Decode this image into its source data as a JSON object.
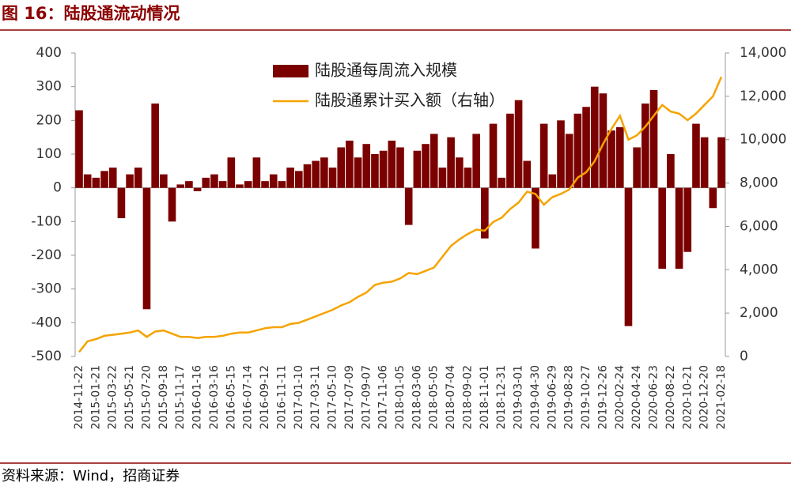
{
  "header": {
    "title": "图 16：陆股通流动情况"
  },
  "chart_data": {
    "type": "bar-line",
    "categories": [
      "2014-11-22",
      null,
      "2015-01-21",
      null,
      "2015-03-22",
      null,
      "2015-05-21",
      null,
      "2015-07-20",
      null,
      "2015-09-18",
      null,
      "2015-11-17",
      null,
      "2016-01-16",
      null,
      "2016-03-16",
      null,
      "2016-05-15",
      null,
      "2016-07-14",
      null,
      "2016-09-12",
      null,
      "2016-11-11",
      null,
      "2017-01-10",
      null,
      "2017-03-11",
      null,
      "2017-05-10",
      null,
      "2017-07-09",
      null,
      "2017-09-07",
      null,
      "2017-11-06",
      null,
      "2018-01-05",
      null,
      "2018-03-06",
      null,
      "2018-05-05",
      null,
      "2018-07-04",
      null,
      "2018-09-02",
      null,
      "2018-11-01",
      null,
      "2018-12-31",
      null,
      "2019-03-01",
      null,
      "2019-04-30",
      null,
      "2019-06-29",
      null,
      "2019-08-28",
      null,
      "2019-10-27",
      null,
      "2019-12-26",
      null,
      "2020-02-24",
      null,
      "2020-04-24",
      null,
      "2020-06-23",
      null,
      "2020-08-22",
      null,
      "2020-10-21",
      null,
      "2020-12-20",
      null,
      "2021-02-18"
    ],
    "series": [
      {
        "name": "陆股通每周流入规模",
        "color": "#7b0000",
        "type": "bar",
        "values": [
          230,
          40,
          30,
          50,
          60,
          -90,
          40,
          60,
          -360,
          250,
          40,
          -100,
          10,
          20,
          -10,
          30,
          40,
          20,
          90,
          10,
          20,
          90,
          20,
          40,
          20,
          60,
          50,
          70,
          80,
          90,
          60,
          120,
          140,
          90,
          130,
          100,
          110,
          140,
          120,
          -110,
          110,
          130,
          160,
          60,
          150,
          90,
          60,
          160,
          -150,
          190,
          30,
          220,
          260,
          80,
          -180,
          190,
          40,
          200,
          160,
          220,
          240,
          300,
          280,
          170,
          180,
          -410,
          120,
          250,
          290,
          -240,
          100,
          -240,
          -190,
          190,
          150,
          -60,
          150
        ]
      },
      {
        "name": "陆股通累计买入额（右轴）",
        "color": "#f5a300",
        "type": "line",
        "axis": "y2",
        "values": [
          200,
          700,
          800,
          950,
          1000,
          1050,
          1100,
          1200,
          900,
          1150,
          1200,
          1050,
          900,
          900,
          850,
          900,
          900,
          950,
          1050,
          1100,
          1100,
          1200,
          1300,
          1350,
          1350,
          1500,
          1550,
          1700,
          1850,
          2000,
          2150,
          2350,
          2500,
          2750,
          2950,
          3300,
          3400,
          3450,
          3600,
          3850,
          3800,
          3950,
          4100,
          4600,
          5100,
          5400,
          5650,
          5850,
          5800,
          6200,
          6400,
          6800,
          7100,
          7600,
          7500,
          7000,
          7350,
          7500,
          7700,
          8250,
          8500,
          9000,
          9800,
          10500,
          11100,
          10000,
          10200,
          10600,
          11100,
          11600,
          11300,
          11200,
          10900,
          11200,
          11600,
          12000,
          12900
        ]
      }
    ],
    "ylim": [
      -500,
      400
    ],
    "yticks": [
      -500,
      -400,
      -300,
      -200,
      -100,
      0,
      100,
      200,
      300,
      400
    ],
    "y2lim": [
      0,
      14000
    ],
    "y2ticks": [
      0,
      {
        "value": 2000,
        "label": "2,000"
      },
      {
        "value": 4000,
        "label": "4,000"
      },
      {
        "value": 6000,
        "label": "6,000"
      },
      {
        "value": 8000,
        "label": "8,000"
      },
      {
        "value": 10000,
        "label": "10,000"
      },
      {
        "value": 12000,
        "label": "12,000"
      },
      {
        "value": 14000,
        "label": "14,000"
      }
    ],
    "grid": false,
    "legend": "top"
  },
  "footer": {
    "source": "资料来源：Wind，招商证券"
  }
}
